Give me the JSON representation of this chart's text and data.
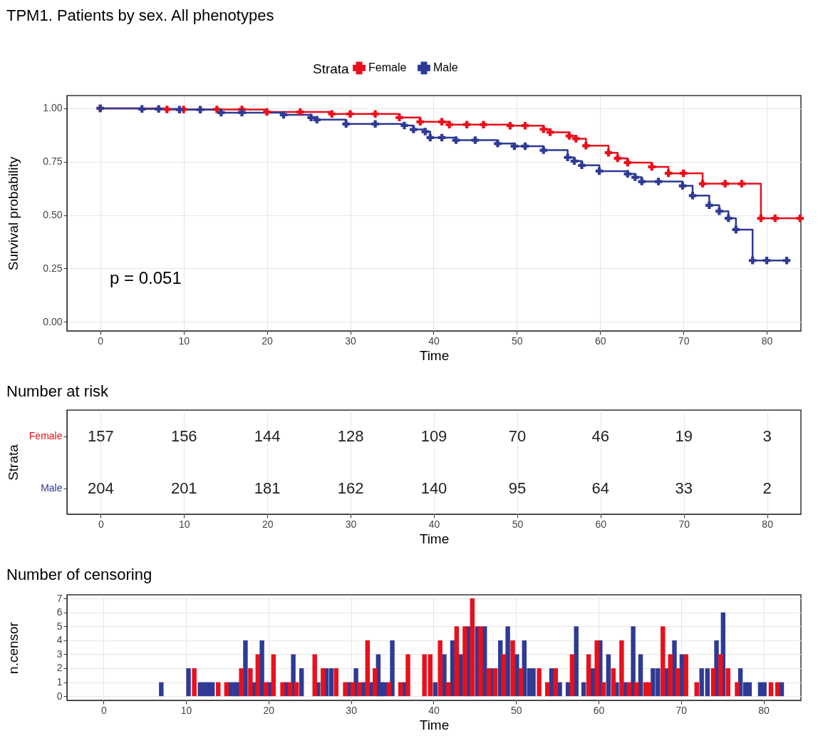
{
  "chart_data": [
    {
      "type": "step",
      "title": "TPM1. Patients by sex. All phenotypes",
      "xlabel": "Time",
      "ylabel": "Survival probability",
      "legend_title": "Strata",
      "legend": "top",
      "marker": "cross",
      "grid": true,
      "xlim": [
        -4,
        84.1
      ],
      "xticks": [
        0,
        10,
        20,
        30,
        40,
        50,
        60,
        70,
        80
      ],
      "ylim": [
        -0.043,
        1.06
      ],
      "yticks": [
        {
          "value": 0,
          "label": "0.00"
        },
        {
          "value": 0.25,
          "label": "0.25"
        },
        {
          "value": 0.5,
          "label": "0.50"
        },
        {
          "value": 0.75,
          "label": "0.75"
        },
        {
          "value": 1,
          "label": "1.00"
        }
      ],
      "annotations": [
        "p = 0.051"
      ],
      "series": [
        {
          "name": "Female",
          "color": "#e8101c",
          "x": [
            0,
            8,
            10,
            14,
            17,
            20,
            24,
            27.8,
            30,
            33,
            35.9,
            38.4,
            41,
            41.9,
            44,
            46,
            49.2,
            51,
            53.2,
            54,
            56.3,
            57.1,
            58.3,
            61,
            62.1,
            63.3,
            66.2,
            68.2,
            70,
            72.3,
            75,
            77,
            79.3,
            81,
            84
          ],
          "values": [
            1.0,
            0.995,
            0.995,
            0.995,
            0.995,
            0.983,
            0.983,
            0.974,
            0.974,
            0.974,
            0.957,
            0.937,
            0.937,
            0.924,
            0.924,
            0.924,
            0.919,
            0.919,
            0.902,
            0.888,
            0.871,
            0.858,
            0.825,
            0.792,
            0.766,
            0.746,
            0.726,
            0.696,
            0.696,
            0.647,
            0.647,
            0.647,
            0.485,
            0.485,
            0.485
          ]
        },
        {
          "name": "Male",
          "color": "#2e3a94",
          "x": [
            0,
            5,
            7,
            9.5,
            12,
            14.5,
            17,
            22,
            25.3,
            26,
            29.5,
            33,
            36.5,
            37.6,
            39,
            39.6,
            41,
            42.7,
            45,
            47.7,
            49.7,
            51,
            53.2,
            56.1,
            56.9,
            57.8,
            59.9,
            63.3,
            64.2,
            65,
            67,
            69.9,
            71.1,
            73.1,
            74.3,
            75.4,
            76.3,
            78.3,
            80,
            82.4
          ],
          "values": [
            1.0,
            0.997,
            0.997,
            0.994,
            0.994,
            0.98,
            0.98,
            0.97,
            0.957,
            0.947,
            0.927,
            0.927,
            0.92,
            0.901,
            0.891,
            0.863,
            0.863,
            0.851,
            0.851,
            0.835,
            0.823,
            0.823,
            0.804,
            0.77,
            0.753,
            0.733,
            0.706,
            0.693,
            0.677,
            0.657,
            0.657,
            0.637,
            0.591,
            0.546,
            0.518,
            0.485,
            0.432,
            0.287,
            0.287,
            0.287
          ]
        }
      ]
    },
    {
      "type": "heatmap",
      "title": "Number at risk",
      "xlabel": "Time",
      "ylabel": "Strata",
      "grid": true,
      "data_labels": true,
      "categories": [
        "0",
        "10",
        "20",
        "30",
        "40",
        "50",
        "60",
        "70",
        "80"
      ],
      "y_categories": [
        "Female",
        "Male"
      ],
      "cells": [
        [
          157,
          156,
          144,
          128,
          109,
          70,
          46,
          19,
          3
        ],
        [
          204,
          201,
          181,
          162,
          140,
          95,
          64,
          33,
          2
        ]
      ]
    },
    {
      "type": "bar",
      "title": "Number of censoring",
      "xlabel": "Time",
      "ylabel": "n.censor",
      "grid": true,
      "xlim": [
        -4,
        84.1
      ],
      "xticks": [
        0,
        10,
        20,
        30,
        40,
        50,
        60,
        70,
        80
      ],
      "ylim": [
        -0.3,
        7.26
      ],
      "yticks": [
        0,
        1,
        2,
        3,
        4,
        5,
        6,
        7
      ],
      "series": [
        {
          "color": "#2e3a94",
          "x": [
            7,
            10.3,
            11.7,
            12.2,
            12.7,
            13.2,
            15.4,
            15.9,
            16.2,
            17.2,
            18.2,
            19.2,
            20.1,
            22.1,
            23.0,
            24.0,
            26.0,
            27.0,
            27.6,
            29.8,
            30.6,
            31.5,
            32.4,
            33.3,
            33.7,
            34.1,
            35.0,
            36.5,
            40.2,
            41.3,
            42.3,
            43.3,
            44.2,
            45.3,
            46.2,
            47.1,
            48.1,
            49.0,
            50.1,
            51.0,
            51.6,
            52.1,
            54.3,
            55.3,
            56.3,
            57.3,
            58.2,
            59.3,
            60.2,
            61.2,
            62.2,
            63.2,
            64.2,
            65.1,
            66.6,
            67.2,
            68.3,
            69.2,
            70.1,
            72.5,
            73.2,
            74.3,
            75.1,
            77.2,
            77.8,
            78.3,
            79.6,
            80.1,
            82.2
          ],
          "values": [
            1,
            2,
            1,
            1,
            1,
            1,
            1,
            1,
            1,
            4,
            1,
            4,
            1,
            1,
            3,
            2,
            1,
            2,
            2,
            1,
            2,
            1,
            1,
            3,
            1,
            1,
            4,
            1,
            1,
            3,
            4,
            3,
            5,
            5,
            5,
            2,
            4,
            5,
            3,
            4,
            2,
            2,
            2,
            1,
            1,
            5,
            1,
            2,
            4,
            3,
            1,
            1,
            5,
            3,
            2,
            2,
            2,
            4,
            3,
            2,
            2,
            4,
            6,
            2,
            1,
            1,
            1,
            1,
            1
          ]
        },
        {
          "color": "#e8101c",
          "x": [
            11,
            13.9,
            14.9,
            16.7,
            17.8,
            18.7,
            19.7,
            20.6,
            21.7,
            22.6,
            23.4,
            25.6,
            26.6,
            28.2,
            29.3,
            30.2,
            31.0,
            32.0,
            32.9,
            34.6,
            36.0,
            36.9,
            38.9,
            39.6,
            40.8,
            41.8,
            42.8,
            43.8,
            44.7,
            45.7,
            46.7,
            47.5,
            48.5,
            49.6,
            50.6,
            52.8,
            53.8,
            54.8,
            56.8,
            58.8,
            59.8,
            60.6,
            61.8,
            62.8,
            63.7,
            64.6,
            65.7,
            66.1,
            67.8,
            68.7,
            69.6,
            70.6,
            71.9,
            73.9,
            74.8,
            75.7,
            76.8,
            80.9,
            81.7
          ],
          "values": [
            2,
            1,
            1,
            2,
            2,
            3,
            1,
            3,
            1,
            1,
            1,
            3,
            2,
            2,
            1,
            1,
            1,
            4,
            2,
            1,
            1,
            3,
            3,
            3,
            4,
            1,
            5,
            5,
            7,
            5,
            2,
            2,
            3,
            4,
            2,
            2,
            1,
            2,
            3,
            3,
            4,
            1,
            2,
            4,
            1,
            1,
            1,
            1,
            5,
            3,
            2,
            3,
            1,
            2,
            3,
            2,
            1,
            1,
            1
          ]
        }
      ]
    }
  ]
}
